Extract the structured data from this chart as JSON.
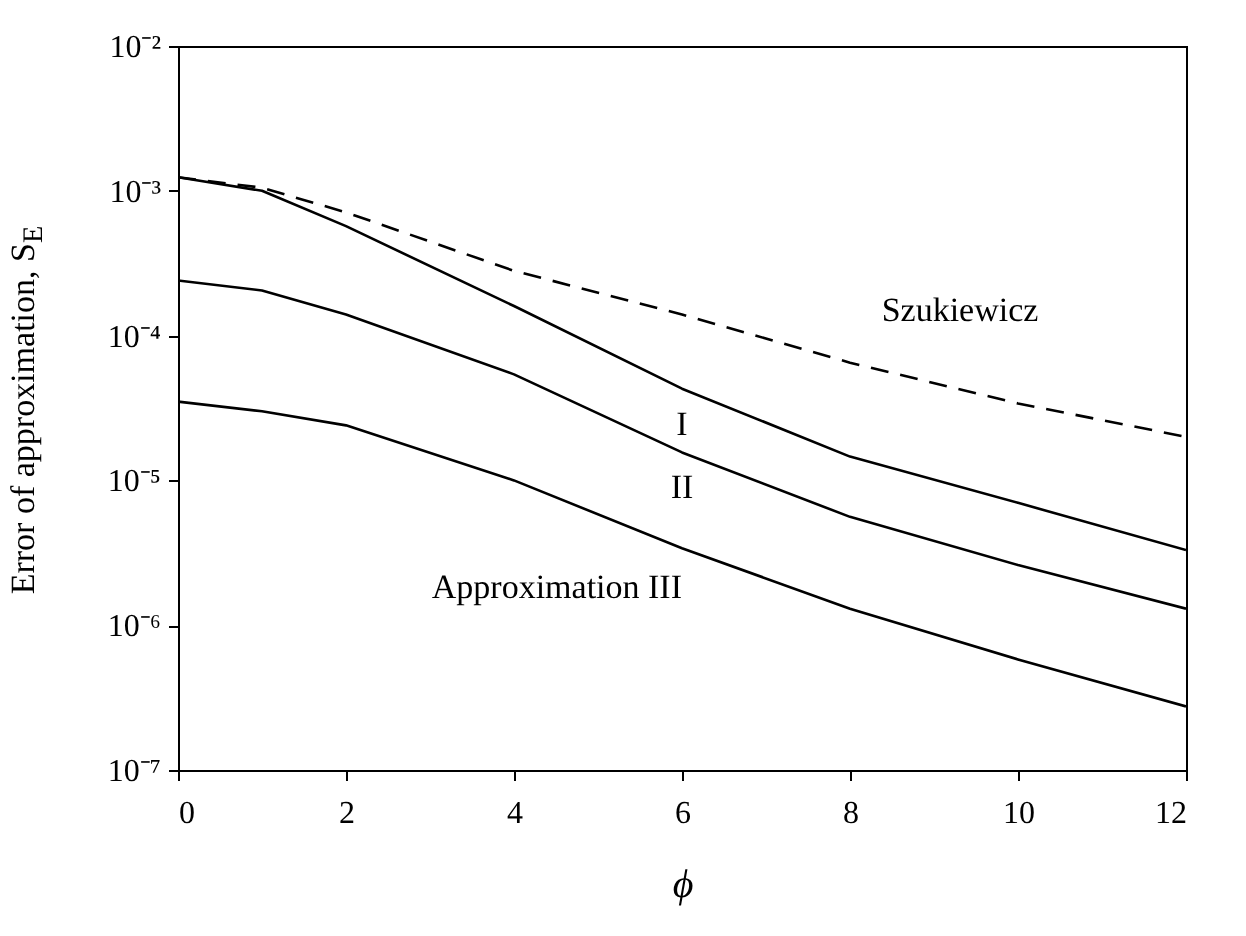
{
  "chart_data": {
    "type": "line",
    "xlabel": "ϕ",
    "ylabel": "Error of approximation, S$_{E}$",
    "x": [
      0,
      1,
      2,
      4,
      6,
      8,
      10,
      12
    ],
    "series": [
      {
        "name": "Szukiewicz",
        "color": "#000000",
        "line_style": "dashed",
        "values": [
          0.00124,
          0.00105,
          0.00071,
          0.00028,
          0.00014,
          6.5e-05,
          3.4e-05,
          2e-05
        ]
      },
      {
        "name": "I",
        "color": "#000000",
        "line_style": "solid",
        "values": [
          0.00124,
          0.001,
          0.00057,
          0.00016,
          4.3e-05,
          1.46e-05,
          7e-06,
          3.3e-06
        ]
      },
      {
        "name": "II",
        "color": "#000000",
        "line_style": "solid",
        "values": [
          0.00024,
          0.000205,
          0.00014,
          5.4e-05,
          1.56e-05,
          5.6e-06,
          2.6e-06,
          1.3e-06
        ]
      },
      {
        "name": "Approximation  III",
        "color": "#000000",
        "line_style": "solid",
        "values": [
          3.5e-05,
          3e-05,
          2.4e-05,
          1e-05,
          3.4e-06,
          1.3e-06,
          5.8e-07,
          2.75e-07
        ]
      }
    ],
    "log": true,
    "grid": false,
    "marker": "none",
    "xlim": [
      0,
      12
    ],
    "xticks": [
      0,
      2,
      4,
      6,
      8,
      10,
      12
    ],
    "ylim": [
      1e-07,
      0.01
    ],
    "yticks": [
      {
        "value": 1e-07,
        "label": "10⁻⁷"
      },
      {
        "value": 1e-06,
        "label": "10⁻⁶"
      },
      {
        "value": 1e-05,
        "label": "10⁻⁵"
      },
      {
        "value": 0.0001,
        "label": "10⁻⁴"
      },
      {
        "value": 0.001,
        "label": "10⁻³"
      },
      {
        "value": 0.01,
        "label": "10⁻²"
      }
    ]
  }
}
